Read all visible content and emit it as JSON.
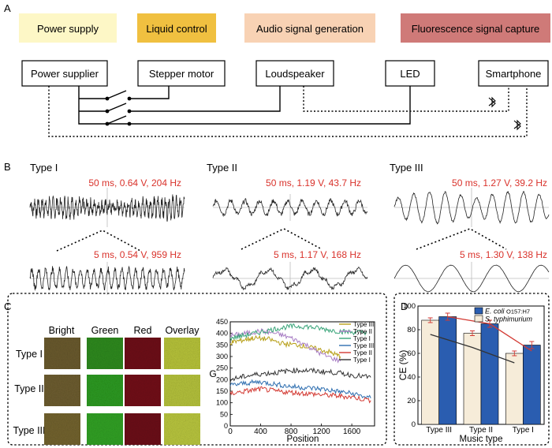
{
  "panel_labels": {
    "a": "A",
    "b": "B",
    "c": "C",
    "d": "D"
  },
  "colors": {
    "power": "#fdf7c6",
    "liquid": "#f0c040",
    "audio": "#f8d2b4",
    "fluor": "#cf7a78",
    "signal_red": "#d9322b",
    "ecoli_bar": "#2a5db0",
    "salmonella_bar": "#f6ecd9"
  },
  "panel_a": {
    "categories": [
      "Power supply",
      "Liquid control",
      "Audio signal generation",
      "Fluorescence signal capture"
    ],
    "components": [
      "Power supplier",
      "Stepper motor",
      "Loudspeaker",
      "LED",
      "Smartphone"
    ],
    "bluetooth_icon": "bluetooth-icon"
  },
  "panel_b": {
    "types": [
      "Type I",
      "Type II",
      "Type III"
    ],
    "top_labels": [
      "50 ms, 0.64 V, 204 Hz",
      "50 ms, 1.19 V, 43.7 Hz",
      "50 ms, 1.27 V, 39.2 Hz"
    ],
    "bottom_labels": [
      "5 ms, 0.54 V, 959 Hz",
      "5 ms, 1.17 V, 168 Hz",
      "5 ms, 1.30 V, 138 Hz"
    ]
  },
  "panel_c": {
    "column_headers": [
      "Bright",
      "Green",
      "Red",
      "Overlay"
    ],
    "row_labels": [
      "Type I",
      "Type II",
      "Type III"
    ]
  },
  "chart_data": [
    {
      "type": "line",
      "title": "",
      "xlabel": "Position",
      "ylabel": "G",
      "xlim": [
        0,
        1900
      ],
      "ylim": [
        0,
        450
      ],
      "xticks": [
        "0",
        "400",
        "800",
        "1200",
        "1600"
      ],
      "yticks": [
        "0",
        "50",
        "100",
        "150",
        "200",
        "250",
        "300",
        "350",
        "400",
        "450"
      ],
      "legend": [
        "Type III",
        "Type II",
        "Type I",
        "Type III",
        "Type II",
        "Type I"
      ],
      "series": [
        {
          "name": "Type III",
          "color": "#b8a01a",
          "x": [
            0,
            150,
            300,
            500,
            700,
            900,
            1100,
            1300,
            1450
          ],
          "values": [
            360,
            370,
            380,
            375,
            355,
            350,
            335,
            320,
            300
          ]
        },
        {
          "name": "Type II",
          "color": "#a77cc4",
          "x": [
            0,
            200,
            400,
            600,
            800,
            1000,
            1200,
            1450
          ],
          "values": [
            390,
            400,
            410,
            400,
            380,
            350,
            310,
            280
          ]
        },
        {
          "name": "Type I",
          "color": "#3aa57a",
          "x": [
            0,
            200,
            400,
            600,
            800,
            1000,
            1200,
            1400,
            1600,
            1800
          ],
          "values": [
            380,
            392,
            405,
            420,
            430,
            430,
            420,
            410,
            405,
            405
          ]
        },
        {
          "name": "Type III",
          "color": "#2f6fb0",
          "x": [
            0,
            200,
            400,
            600,
            800,
            1000,
            1200,
            1400,
            1600,
            1850
          ],
          "values": [
            175,
            185,
            190,
            180,
            170,
            165,
            160,
            150,
            140,
            120
          ]
        },
        {
          "name": "Type II",
          "color": "#d33a33",
          "x": [
            0,
            200,
            400,
            600,
            800,
            1000,
            1200,
            1400,
            1600,
            1850
          ],
          "values": [
            140,
            150,
            160,
            150,
            145,
            140,
            135,
            130,
            125,
            110
          ]
        },
        {
          "name": "Type I",
          "color": "#333333",
          "x": [
            0,
            200,
            400,
            600,
            800,
            1000,
            1200,
            1400,
            1600,
            1850
          ],
          "values": [
            200,
            215,
            225,
            230,
            240,
            240,
            235,
            230,
            220,
            210
          ]
        }
      ]
    },
    {
      "type": "bar",
      "title": "",
      "xlabel": "Music type",
      "ylabel": "CE (%)",
      "ylim": [
        0,
        100
      ],
      "yticks": [
        "0",
        "20",
        "40",
        "60",
        "80",
        "100"
      ],
      "categories": [
        "Type III",
        "Type II",
        "Type I"
      ],
      "legend_position": "top-right",
      "series": [
        {
          "name": "S. typhimurium",
          "color": "#f6ecd9",
          "values": [
            88,
            77,
            60
          ],
          "errors": [
            2,
            2,
            2
          ]
        },
        {
          "name": "E. coli O157:H7",
          "color": "#2a5db0",
          "values": [
            91,
            85,
            67
          ],
          "errors": [
            3,
            3,
            3
          ]
        }
      ],
      "legend_labels": {
        "ecoli_species": "E. coli",
        "ecoli_strain": "O157:H7",
        "salmonella": "S. typhimurium"
      },
      "trend_lines": [
        {
          "name": "S. typhimurium trend",
          "color": "#333333",
          "values": [
            76,
            65,
            52
          ]
        },
        {
          "name": "E. coli trend",
          "color": "#d33a33",
          "values": [
            91,
            85,
            62
          ]
        }
      ]
    }
  ]
}
